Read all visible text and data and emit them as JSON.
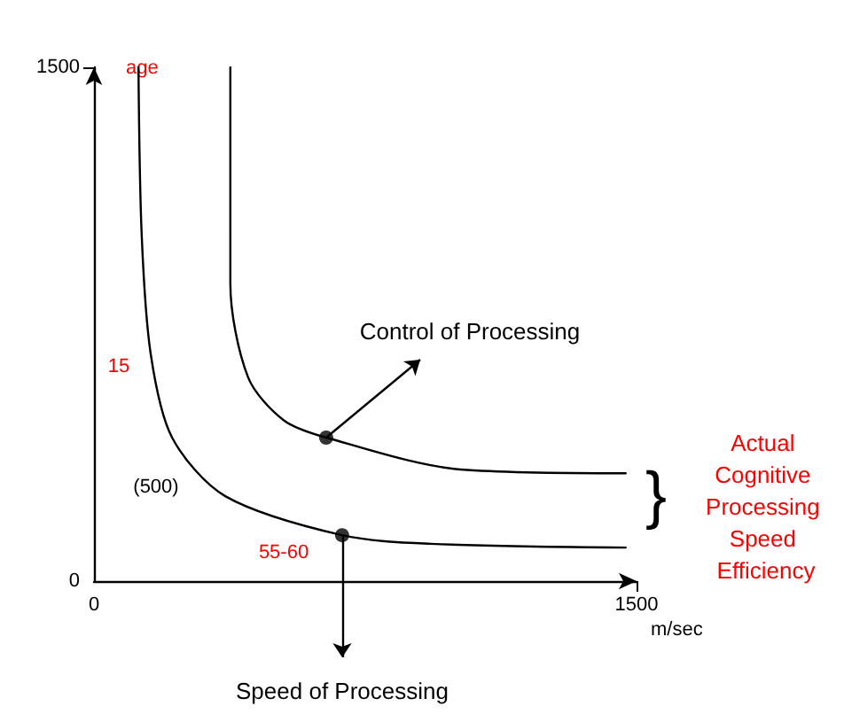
{
  "chart_data": {
    "type": "line",
    "xlabel": "m/sec",
    "ylabel": "age",
    "xlim": [
      0,
      1500
    ],
    "ylim": [
      0,
      1500
    ],
    "xticks": [
      0,
      1500
    ],
    "yticks": [
      0,
      1500
    ],
    "grid": false,
    "marker": "none",
    "line_style": "solid",
    "series": [
      {
        "color": "#000000",
        "x": [
          123,
          132,
          157,
          216,
          363,
          686,
          931,
          1470
        ],
        "values": [
          1500,
          1009,
          662,
          419,
          248,
          134,
          109,
          98
        ]
      },
      {
        "color": "#000000",
        "x": [
          377,
          377,
          426,
          524,
          642,
          1014,
          1470
        ],
        "values": [
          1500,
          869,
          595,
          470,
          419,
          326,
          315
        ]
      },
      {
        "type": "scatter",
        "marker": "circle",
        "color": "#000000",
        "x": [
          642,
          686
        ],
        "values": [
          419,
          134
        ]
      }
    ],
    "annotations": [
      "Control of Processing",
      "Speed of Processing",
      "(500)",
      "15",
      "55-60",
      "}",
      "Actual Cognitive Processing Speed Efficiency"
    ]
  }
}
